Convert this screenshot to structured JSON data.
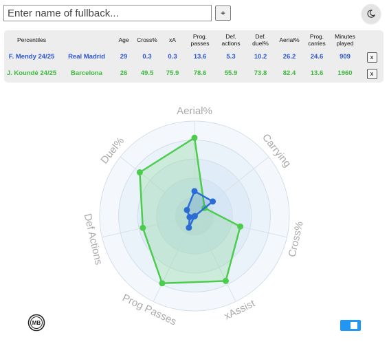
{
  "search": {
    "placeholder": "Enter name of fullback...",
    "value": ""
  },
  "add_button_label": "+",
  "theme_toggle_icon": "moon-icon",
  "table": {
    "headers": [
      "Percentiles",
      "",
      "Age",
      "Cross%",
      "xA",
      "Prog. passes",
      "Def. actions",
      "Def. duel%",
      "Aerial%",
      "Prog. carries",
      "Minutes played",
      ""
    ],
    "rows": [
      {
        "player": "F. Mendy 24/25",
        "team": "Real Madrid",
        "cells": [
          "29",
          "0.3",
          "0.3",
          "13.6",
          "5.3",
          "10.2",
          "26.2",
          "24.6",
          "909"
        ],
        "remove_label": "x",
        "color": "#2b55d6"
      },
      {
        "player": "J. Koundé 24/25",
        "team": "Barcelona",
        "cells": [
          "26",
          "49.5",
          "75.9",
          "78.6",
          "55.9",
          "73.8",
          "82.4",
          "13.6",
          "1960"
        ],
        "remove_label": "x",
        "color": "#3dbb3d"
      }
    ]
  },
  "chart_data": {
    "type": "radar",
    "axes": [
      "Aerial%",
      "Carrying",
      "Cross%",
      "xAssist",
      "Prog Passes",
      "Def Actions",
      "Duel%"
    ],
    "range": [
      0,
      100
    ],
    "series": [
      {
        "player": "F. Mendy 24/25",
        "color": "#2b6bd6",
        "values": [
          26.2,
          24.6,
          0.3,
          0.3,
          13.6,
          5.3,
          10.2
        ]
      },
      {
        "player": "J. Koundé 24/25",
        "color": "#4ccc4c",
        "values": [
          82.4,
          13.6,
          49.5,
          75.9,
          78.6,
          55.9,
          73.8
        ]
      }
    ]
  },
  "logo_text": "MB",
  "toggle_state": "on"
}
